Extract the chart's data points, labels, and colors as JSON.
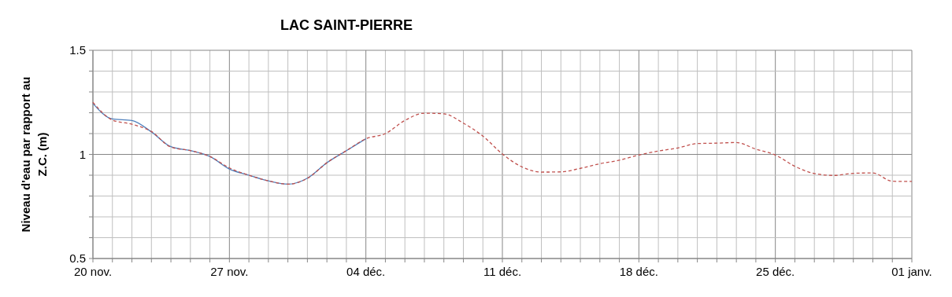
{
  "chart_data": {
    "type": "line",
    "title": "LAC SAINT-PIERRE",
    "ylabel": "Niveau d'eau par rapport au Z.C. (m)",
    "categories": [
      "20 nov.",
      null,
      null,
      null,
      null,
      null,
      null,
      "27 nov.",
      null,
      null,
      null,
      null,
      null,
      null,
      "04 déc.",
      null,
      null,
      null,
      null,
      null,
      null,
      "11 déc.",
      null,
      null,
      null,
      null,
      null,
      null,
      "18 déc.",
      null,
      null,
      null,
      null,
      null,
      null,
      "25 déc.",
      null,
      null,
      null,
      null,
      null,
      null,
      "01 janv."
    ],
    "series": [
      {
        "color": "#4f81bd",
        "line_style": "solid",
        "values": [
          1.245,
          1.17,
          1.163,
          1.108,
          1.037,
          1.018,
          0.99,
          0.93,
          0.9,
          0.873,
          0.857,
          0.886,
          0.96,
          1.018,
          1.075,
          null,
          null,
          null,
          null,
          null,
          null,
          null,
          null,
          null,
          null,
          null,
          null,
          null,
          null,
          null,
          null,
          null,
          null,
          null,
          null,
          null,
          null,
          null,
          null,
          null,
          null,
          null,
          null
        ]
      },
      {
        "color": "#c0504d",
        "line_style": "dashed",
        "values": [
          1.25,
          1.165,
          1.145,
          1.11,
          1.035,
          1.018,
          0.99,
          0.935,
          0.9,
          0.873,
          0.857,
          0.885,
          0.96,
          1.018,
          1.075,
          1.1,
          1.163,
          1.198,
          1.195,
          1.15,
          1.088,
          1.002,
          0.94,
          0.915,
          0.916,
          0.933,
          0.955,
          0.972,
          0.997,
          1.016,
          1.031,
          1.052,
          1.054,
          1.057,
          1.025,
          0.997,
          0.943,
          0.908,
          0.899,
          0.909,
          0.911,
          0.871,
          0.87
        ]
      }
    ],
    "ylim": [
      0.5,
      1.5
    ],
    "yticks": [
      0.5,
      {
        "value": 0.6,
        "label": null
      },
      {
        "value": 0.7,
        "label": null
      },
      {
        "value": 0.8,
        "label": null
      },
      {
        "value": 0.9,
        "label": null
      },
      1,
      {
        "value": 1.1,
        "label": null
      },
      {
        "value": 1.2,
        "label": null
      },
      {
        "value": 1.3,
        "label": null
      },
      {
        "value": 1.4,
        "label": null
      },
      1.5
    ],
    "grid": true,
    "marker": "none"
  }
}
